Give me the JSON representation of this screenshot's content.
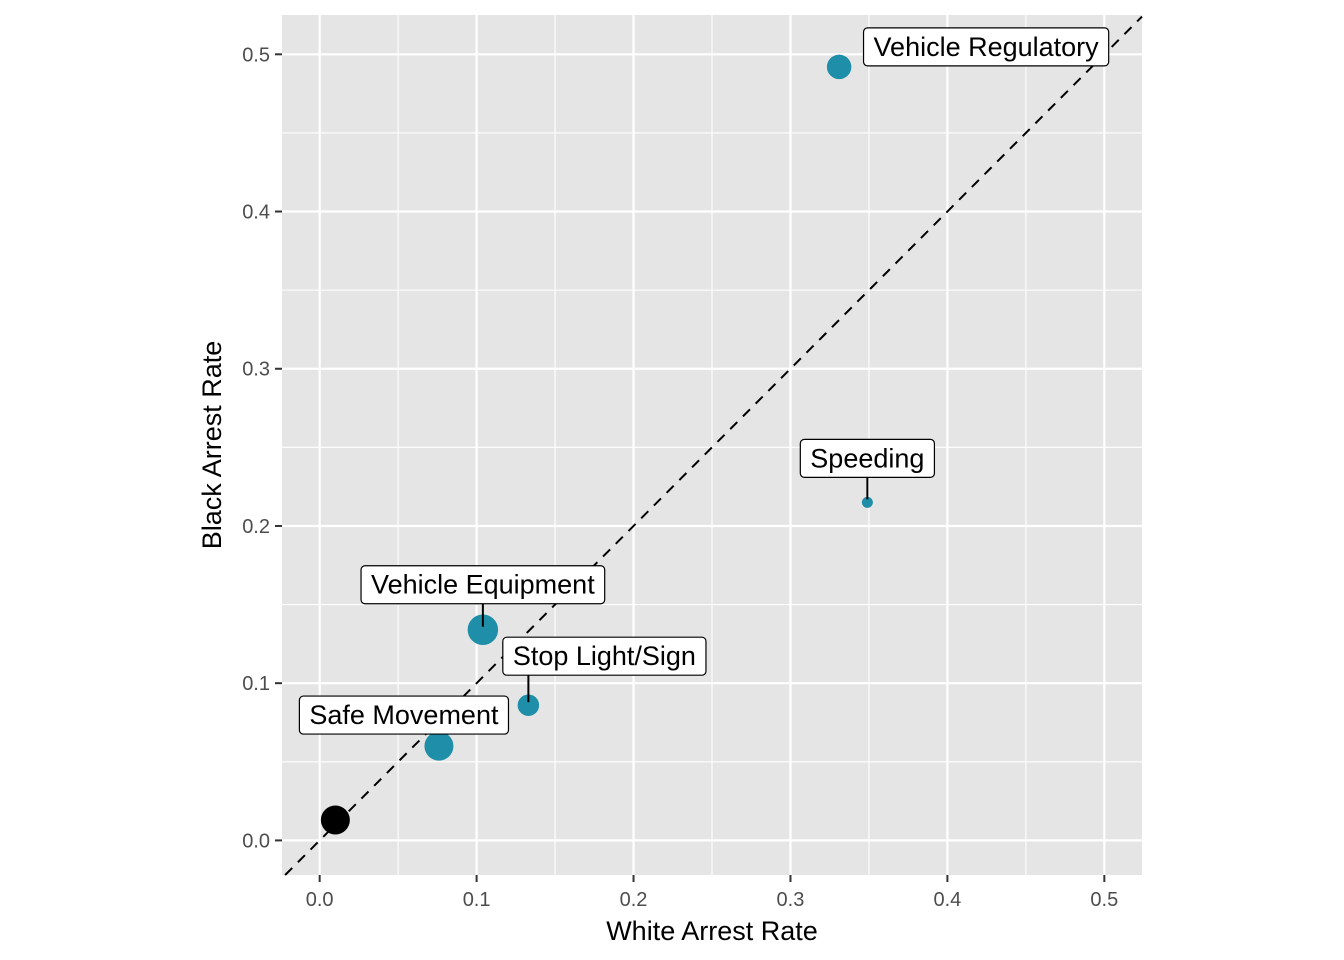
{
  "chart_data": {
    "type": "scatter",
    "xlabel": "White Arrest Rate",
    "ylabel": "Black Arrest Rate",
    "xlim": [
      -0.024,
      0.524
    ],
    "ylim": [
      -0.022,
      0.525
    ],
    "x_ticks": [
      0.0,
      0.1,
      0.2,
      0.3,
      0.4,
      0.5
    ],
    "y_ticks": [
      0.0,
      0.1,
      0.2,
      0.3,
      0.4,
      0.5
    ],
    "x_tick_labels": [
      "0.0",
      "0.1",
      "0.2",
      "0.3",
      "0.4",
      "0.5"
    ],
    "y_tick_labels": [
      "0.0",
      "0.1",
      "0.2",
      "0.3",
      "0.4",
      "0.5"
    ],
    "grid": true,
    "reference_line": {
      "type": "identity",
      "style": "dashed"
    },
    "colors": {
      "panel": "#e5e5e5",
      "grid": "#ffffff",
      "point": "#1f8ea8",
      "highlight": "#000000"
    },
    "points": [
      {
        "label": "Vehicle Regulatory",
        "x": 0.331,
        "y": 0.492,
        "relative_size": 0.55,
        "color": "#1f8ea8"
      },
      {
        "label": "Speeding",
        "x": 0.349,
        "y": 0.215,
        "relative_size": 0.1,
        "color": "#1f8ea8"
      },
      {
        "label": "Vehicle Equipment",
        "x": 0.104,
        "y": 0.134,
        "relative_size": 0.75,
        "color": "#1f8ea8"
      },
      {
        "label": "Stop Light/Sign",
        "x": 0.133,
        "y": 0.086,
        "relative_size": 0.45,
        "color": "#1f8ea8"
      },
      {
        "label": "Safe Movement",
        "x": 0.076,
        "y": 0.06,
        "relative_size": 0.7,
        "color": "#1f8ea8"
      },
      {
        "label": "",
        "x": 0.01,
        "y": 0.013,
        "relative_size": 0.7,
        "color": "#000000"
      }
    ]
  }
}
